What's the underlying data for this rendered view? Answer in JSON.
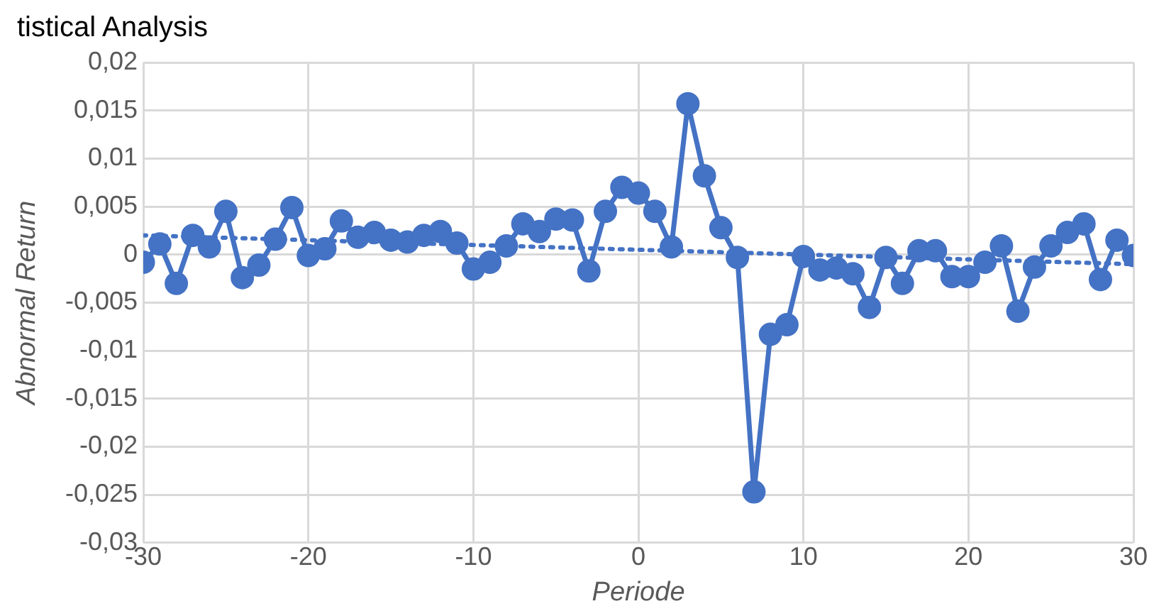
{
  "chart_data": {
    "type": "line",
    "title": "tistical Analysis",
    "xlabel": "Periode",
    "ylabel": "Abnormal Return",
    "x": [
      -30,
      -29,
      -28,
      -27,
      -26,
      -25,
      -24,
      -23,
      -22,
      -21,
      -20,
      -19,
      -18,
      -17,
      -16,
      -15,
      -14,
      -13,
      -12,
      -11,
      -10,
      -9,
      -8,
      -7,
      -6,
      -5,
      -4,
      -3,
      -2,
      -1,
      0,
      1,
      2,
      3,
      4,
      5,
      6,
      7,
      8,
      9,
      10,
      11,
      12,
      13,
      14,
      15,
      16,
      17,
      18,
      19,
      20,
      21,
      22,
      23,
      24,
      25,
      26,
      27,
      28,
      29,
      30
    ],
    "series": [
      {
        "color": "#4472c4",
        "marker": "circle",
        "line_style": "solid",
        "values": [
          -0.0008,
          0.0011,
          -0.003,
          0.002,
          0.0008,
          0.0045,
          -0.0024,
          -0.0011,
          0.0016,
          0.0049,
          -0.0001,
          0.0006,
          0.0035,
          0.0018,
          0.0023,
          0.0015,
          0.0013,
          0.002,
          0.0024,
          0.0012,
          -0.0015,
          -0.0008,
          0.0009,
          0.0032,
          0.0024,
          0.0037,
          0.0036,
          -0.0017,
          0.0045,
          0.007,
          0.0064,
          0.0045,
          0.0008,
          0.0157,
          0.0082,
          0.0028,
          -0.0003,
          -0.0247,
          -0.0083,
          -0.0073,
          -0.0002,
          -0.0016,
          -0.0014,
          -0.002,
          -0.0055,
          -0.0003,
          -0.003,
          0.0004,
          0.0004,
          -0.0023,
          -0.0023,
          -0.0008,
          0.0009,
          -0.0059,
          -0.0013,
          0.0009,
          0.0023,
          0.0032,
          -0.0026,
          0.0015,
          -0.0001
        ]
      },
      {
        "type": "line",
        "color": "#4472c4",
        "marker": "none",
        "line_style": "dotted",
        "x": [
          -30,
          30
        ],
        "values": [
          0.002,
          -0.001
        ]
      }
    ],
    "xlim": [
      -30,
      30
    ],
    "xticks": [
      -30,
      -20,
      -10,
      0,
      10,
      20,
      30
    ],
    "ylim": [
      -0.03,
      0.02
    ],
    "yticks": [
      {
        "value": 0.02,
        "label": "0,02"
      },
      {
        "value": 0.015,
        "label": "0,015"
      },
      {
        "value": 0.01,
        "label": "0,01"
      },
      {
        "value": 0.005,
        "label": "0,005"
      },
      {
        "value": 0,
        "label": "0"
      },
      {
        "value": -0.005,
        "label": "-0,005"
      },
      {
        "value": -0.01,
        "label": "-0,01"
      },
      {
        "value": -0.015,
        "label": "-0,015"
      },
      {
        "value": -0.02,
        "label": "-0,02"
      },
      {
        "value": -0.025,
        "label": "-0,025"
      },
      {
        "value": -0.03,
        "label": "-0,03"
      }
    ],
    "grid": true,
    "legend": false
  }
}
